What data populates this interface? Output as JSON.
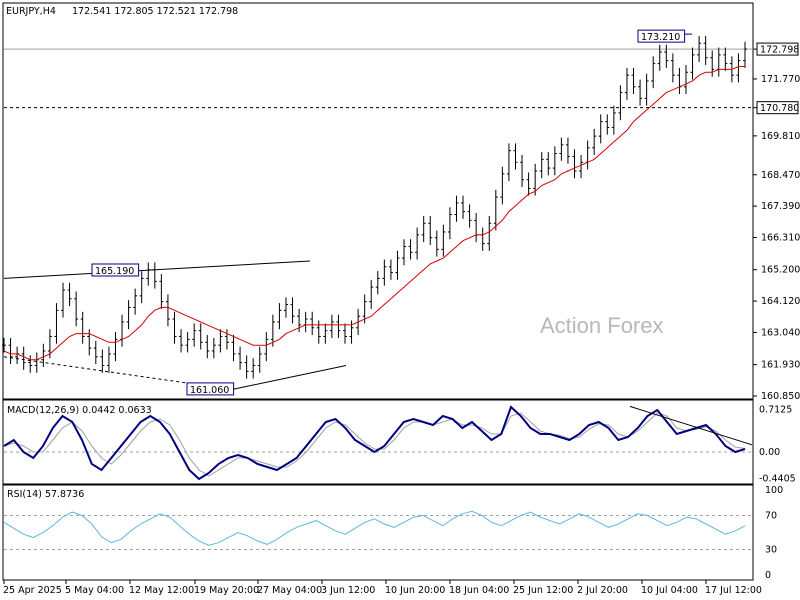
{
  "header": {
    "symbol": "EURJPY,H4",
    "ohlc": "172.541 172.805 172.521 172.798"
  },
  "watermark": "Action Forex",
  "colors": {
    "price": "#000000",
    "ma": "#d60000",
    "macd": "#000080",
    "signal": "#a0a0a0",
    "rsi": "#5fb8e0",
    "label_box": "#000080",
    "grid": "#cccccc"
  },
  "chart_data": [
    {
      "type": "candlestick",
      "name": "price-panel",
      "x_ticks": [
        "25 Apr 2025",
        "5 May 04:00",
        "12 May 12:00",
        "19 May 20:00",
        "27 May 04:00",
        "3 Jun 12:00",
        "10 Jun 20:00",
        "18 Jun 04:00",
        "25 Jun 12:00",
        "2 Jul 20:00",
        "10 Jul 04:00",
        "17 Jul 12:00"
      ],
      "y_ticks": [
        "172.798",
        "171.770",
        "170.780",
        "169.810",
        "168.470",
        "167.390",
        "166.310",
        "165.200",
        "164.120",
        "163.040",
        "161.930",
        "160.850"
      ],
      "ylim": [
        160.85,
        173.8
      ],
      "current_price": 172.798,
      "annotations": [
        {
          "text": "173.210",
          "value": 173.21
        },
        {
          "text": "165.190",
          "value": 165.19
        },
        {
          "text": "161.060",
          "value": 161.06
        },
        {
          "text": "170.780",
          "value": 170.78
        }
      ],
      "horizontal_lines": [
        172.798,
        170.78
      ],
      "close_series": [
        162.6,
        162.2,
        162.3,
        162.0,
        161.9,
        162.1,
        162.4,
        162.9,
        163.8,
        164.5,
        164.2,
        163.5,
        162.9,
        162.5,
        162.2,
        161.9,
        162.3,
        162.8,
        163.4,
        163.9,
        164.3,
        164.9,
        165.2,
        164.8,
        164.1,
        163.5,
        162.9,
        162.6,
        162.8,
        163.1,
        162.7,
        162.4,
        162.6,
        162.9,
        162.7,
        162.3,
        162.0,
        161.7,
        161.9,
        162.3,
        162.8,
        163.4,
        163.8,
        164.0,
        163.6,
        163.3,
        163.5,
        163.2,
        162.9,
        163.1,
        163.4,
        163.1,
        162.9,
        163.2,
        163.6,
        164.1,
        164.6,
        164.9,
        165.3,
        165.1,
        165.6,
        166.0,
        165.8,
        166.4,
        166.8,
        166.3,
        165.9,
        166.5,
        167.1,
        167.5,
        167.2,
        166.9,
        166.4,
        166.1,
        166.8,
        167.7,
        168.5,
        169.3,
        168.9,
        168.3,
        168.0,
        168.6,
        169.0,
        168.7,
        169.2,
        169.5,
        169.1,
        168.6,
        168.9,
        169.4,
        169.8,
        170.3,
        170.1,
        170.6,
        171.3,
        171.9,
        171.5,
        171.1,
        171.7,
        172.3,
        172.7,
        172.4,
        171.9,
        171.5,
        172.0,
        172.6,
        173.0,
        172.5,
        172.1,
        172.6,
        172.3,
        171.9,
        172.4,
        172.8
      ],
      "ma_series": [
        162.4,
        162.3,
        162.3,
        162.2,
        162.1,
        162.1,
        162.2,
        162.3,
        162.5,
        162.7,
        162.9,
        163.0,
        163.0,
        163.0,
        162.9,
        162.8,
        162.7,
        162.7,
        162.8,
        162.9,
        163.1,
        163.3,
        163.6,
        163.8,
        163.9,
        163.9,
        163.8,
        163.7,
        163.6,
        163.5,
        163.4,
        163.3,
        163.2,
        163.1,
        163.0,
        162.9,
        162.8,
        162.7,
        162.6,
        162.6,
        162.6,
        162.7,
        162.8,
        163.0,
        163.1,
        163.2,
        163.3,
        163.3,
        163.3,
        163.3,
        163.3,
        163.3,
        163.3,
        163.3,
        163.4,
        163.5,
        163.6,
        163.8,
        164.0,
        164.2,
        164.4,
        164.6,
        164.8,
        165.0,
        165.2,
        165.4,
        165.5,
        165.6,
        165.8,
        166.0,
        166.2,
        166.3,
        166.4,
        166.4,
        166.5,
        166.7,
        166.9,
        167.2,
        167.4,
        167.6,
        167.8,
        167.9,
        168.1,
        168.2,
        168.3,
        168.5,
        168.6,
        168.7,
        168.8,
        168.9,
        169.0,
        169.2,
        169.4,
        169.6,
        169.8,
        170.0,
        170.3,
        170.5,
        170.7,
        170.9,
        171.1,
        171.3,
        171.4,
        171.5,
        171.6,
        171.7,
        171.9,
        172.0,
        172.0,
        172.1,
        172.1,
        172.1,
        172.2,
        172.2
      ]
    },
    {
      "type": "line",
      "name": "macd-panel",
      "title": "MACD(12,26,9) 0.0442 0.0633",
      "y_ticks": [
        "0.7125",
        "0.00",
        "-0.4405"
      ],
      "ylim": [
        -0.5,
        0.8
      ],
      "macd_series": [
        0.1,
        0.2,
        0.0,
        -0.1,
        0.1,
        0.4,
        0.6,
        0.5,
        0.2,
        -0.2,
        -0.3,
        -0.1,
        0.1,
        0.3,
        0.5,
        0.6,
        0.5,
        0.3,
        0.0,
        -0.3,
        -0.45,
        -0.35,
        -0.2,
        -0.1,
        -0.05,
        -0.1,
        -0.2,
        -0.25,
        -0.3,
        -0.2,
        -0.1,
        0.1,
        0.3,
        0.5,
        0.55,
        0.4,
        0.2,
        0.1,
        0.0,
        0.1,
        0.3,
        0.5,
        0.55,
        0.5,
        0.45,
        0.6,
        0.55,
        0.4,
        0.5,
        0.35,
        0.2,
        0.3,
        0.75,
        0.6,
        0.4,
        0.3,
        0.3,
        0.25,
        0.2,
        0.3,
        0.45,
        0.5,
        0.4,
        0.2,
        0.25,
        0.4,
        0.6,
        0.7,
        0.5,
        0.3,
        0.35,
        0.4,
        0.45,
        0.3,
        0.1,
        0.0,
        0.05
      ],
      "signal_series": [
        0.1,
        0.15,
        0.1,
        0.0,
        0.0,
        0.2,
        0.4,
        0.5,
        0.35,
        0.1,
        -0.1,
        -0.2,
        -0.05,
        0.15,
        0.35,
        0.5,
        0.55,
        0.45,
        0.2,
        -0.1,
        -0.3,
        -0.4,
        -0.3,
        -0.2,
        -0.1,
        -0.1,
        -0.15,
        -0.2,
        -0.25,
        -0.25,
        -0.15,
        0.0,
        0.2,
        0.4,
        0.5,
        0.45,
        0.3,
        0.15,
        0.05,
        0.05,
        0.2,
        0.4,
        0.5,
        0.5,
        0.45,
        0.5,
        0.55,
        0.45,
        0.45,
        0.4,
        0.3,
        0.3,
        0.6,
        0.65,
        0.5,
        0.35,
        0.3,
        0.28,
        0.22,
        0.25,
        0.38,
        0.47,
        0.45,
        0.3,
        0.25,
        0.35,
        0.5,
        0.65,
        0.6,
        0.4,
        0.35,
        0.38,
        0.42,
        0.35,
        0.2,
        0.08,
        0.06
      ]
    },
    {
      "type": "line",
      "name": "rsi-panel",
      "title": "RSI(14) 57.8736",
      "y_ticks": [
        "100",
        "70",
        "30",
        "0"
      ],
      "ylim": [
        0,
        100
      ],
      "levels": [
        70,
        30
      ],
      "rsi_series": [
        62,
        55,
        48,
        44,
        50,
        58,
        68,
        74,
        70,
        60,
        45,
        38,
        42,
        52,
        60,
        66,
        72,
        68,
        58,
        48,
        40,
        35,
        38,
        44,
        50,
        46,
        40,
        36,
        42,
        50,
        56,
        60,
        64,
        58,
        52,
        48,
        55,
        62,
        66,
        60,
        56,
        62,
        68,
        70,
        64,
        58,
        66,
        72,
        75,
        70,
        62,
        58,
        64,
        70,
        74,
        68,
        64,
        60,
        66,
        72,
        68,
        62,
        56,
        60,
        66,
        72,
        70,
        64,
        58,
        62,
        68,
        66,
        60,
        54,
        48,
        52,
        57.9
      ]
    }
  ]
}
